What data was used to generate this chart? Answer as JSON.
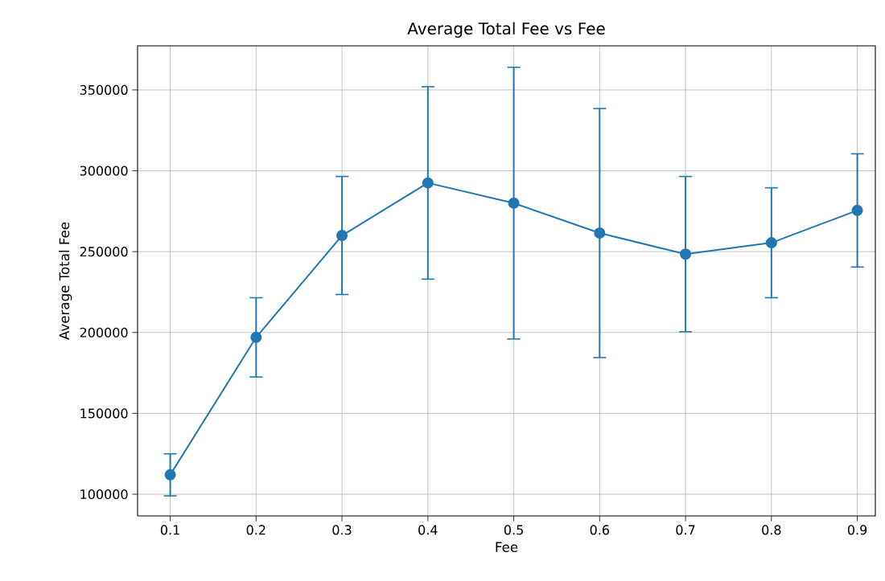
{
  "chart_data": {
    "type": "line",
    "title": "Average Total Fee vs Fee",
    "xlabel": "Fee",
    "ylabel": "Average Total Fee",
    "x": [
      0.1,
      0.2,
      0.3,
      0.4,
      0.5,
      0.6,
      0.7,
      0.8,
      0.9
    ],
    "series": [
      {
        "color": "#1f77b4",
        "values": [
          112000,
          197000,
          260000,
          292500,
          280000,
          261500,
          248500,
          255500,
          275500
        ],
        "errors": [
          13000,
          24500,
          36500,
          59500,
          84000,
          77000,
          48000,
          34000,
          35000
        ]
      }
    ],
    "xlim": [
      0.062,
      0.921
    ],
    "ylim": [
      86600,
      377300
    ],
    "xticks": [
      0.1,
      0.2,
      0.3,
      0.4,
      0.5,
      0.6,
      0.7,
      0.8,
      0.9
    ],
    "yticks": [
      100000,
      150000,
      200000,
      250000,
      300000,
      350000
    ],
    "grid": true,
    "marker": "circle",
    "line_style": "solid"
  }
}
